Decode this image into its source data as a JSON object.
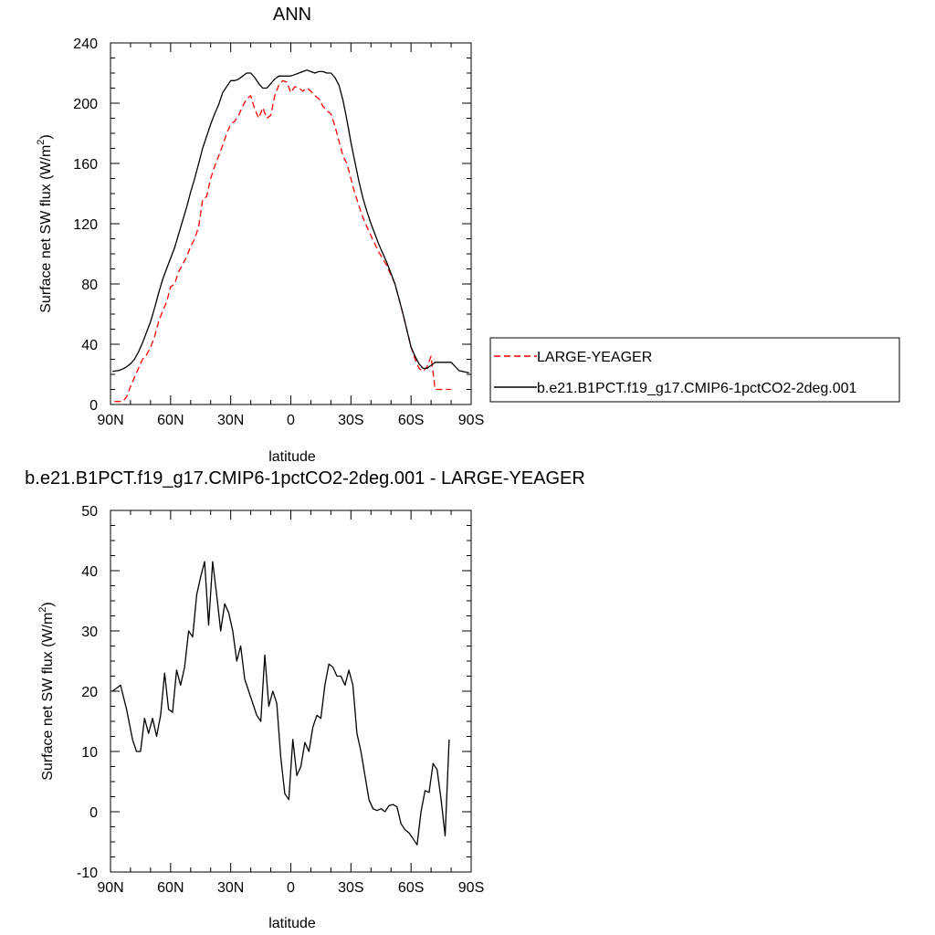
{
  "chart_data": [
    {
      "type": "line",
      "title": "ANN",
      "xlabel": "latitude",
      "ylabel": "Surface net SW flux",
      "ylabel_unit_prefix": "(W/m",
      "ylabel_unit_exp": "2",
      "ylabel_unit_suffix": ")",
      "xlim": [
        90,
        -90
      ],
      "ylim": [
        0,
        240
      ],
      "xticks": [
        90,
        60,
        30,
        0,
        -30,
        -60,
        -90
      ],
      "xtick_labels": [
        "90N",
        "60N",
        "30N",
        "0",
        "30S",
        "60S",
        "90S"
      ],
      "yticks": [
        0,
        40,
        80,
        120,
        160,
        200,
        240
      ],
      "ytick_labels": [
        "0",
        "40",
        "80",
        "120",
        "160",
        "200",
        "240"
      ],
      "legend_position": "right",
      "series": [
        {
          "name": "LARGE-YEAGER",
          "color": "#ff0000",
          "dash": "dashed",
          "x": [
            88,
            86,
            84,
            82,
            80,
            78,
            76,
            74,
            72,
            70,
            68,
            66,
            64,
            62,
            60,
            58,
            56,
            54,
            52,
            50,
            48,
            46,
            44,
            42,
            40,
            38,
            36,
            34,
            32,
            30,
            28,
            26,
            24,
            22,
            20,
            18,
            16,
            14,
            12,
            10,
            8,
            6,
            4,
            2,
            0,
            -2,
            -4,
            -6,
            -8,
            -10,
            -12,
            -14,
            -16,
            -18,
            -20,
            -22,
            -24,
            -26,
            -28,
            -30,
            -32,
            -34,
            -36,
            -38,
            -40,
            -44,
            -48,
            -52,
            -56,
            -60,
            -62,
            -64,
            -66,
            -68,
            -70,
            -72,
            -74,
            -76,
            -78,
            -80
          ],
          "y": [
            2,
            2,
            2,
            5,
            12,
            18,
            24,
            30,
            33,
            38,
            45,
            55,
            62,
            68,
            78,
            80,
            88,
            93,
            98,
            105,
            110,
            118,
            136,
            138,
            150,
            158,
            165,
            172,
            180,
            186,
            188,
            192,
            198,
            203,
            205,
            196,
            190,
            197,
            190,
            192,
            205,
            212,
            215,
            214,
            207,
            211,
            210,
            208,
            210,
            208,
            205,
            203,
            198,
            195,
            193,
            185,
            175,
            165,
            160,
            150,
            140,
            132,
            124,
            118,
            112,
            101,
            92,
            80,
            60,
            38,
            30,
            24,
            22,
            25,
            32,
            10,
            10,
            10,
            10,
            10
          ]
        },
        {
          "name": "b.e21.B1PCT.f19_g17.CMIP6-1pctCO2-2deg.001",
          "color": "#000000",
          "dash": "solid",
          "x": [
            89,
            86,
            84,
            82,
            80,
            78,
            76,
            74,
            72,
            70,
            68,
            66,
            64,
            62,
            60,
            58,
            56,
            54,
            52,
            50,
            48,
            46,
            44,
            42,
            40,
            38,
            36,
            34,
            32,
            30,
            28,
            26,
            24,
            22,
            20,
            18,
            16,
            14,
            12,
            10,
            8,
            6,
            4,
            2,
            0,
            -2,
            -4,
            -6,
            -8,
            -10,
            -12,
            -14,
            -16,
            -18,
            -20,
            -22,
            -24,
            -26,
            -28,
            -30,
            -32,
            -34,
            -36,
            -38,
            -40,
            -44,
            -48,
            -52,
            -56,
            -60,
            -62,
            -64,
            -66,
            -68,
            -70,
            -72,
            -74,
            -76,
            -78,
            -80,
            -84,
            -89
          ],
          "y": [
            22,
            22.5,
            23.5,
            25,
            27,
            30,
            35,
            41,
            48,
            55,
            64,
            74,
            83,
            90,
            97,
            104,
            113,
            122,
            131,
            141,
            150,
            160,
            170,
            178,
            186,
            193,
            199,
            207,
            211,
            215,
            215,
            216,
            218,
            220,
            220,
            217,
            213,
            210,
            210,
            213,
            216,
            218,
            218,
            218,
            218,
            219,
            220,
            221,
            222,
            221,
            220,
            221,
            221,
            220,
            220,
            217,
            212,
            202,
            189,
            174,
            161,
            148,
            137,
            128,
            120,
            106,
            94,
            80,
            60,
            38,
            32,
            27,
            24,
            24,
            26,
            28,
            28,
            28,
            28,
            28,
            22.5,
            21
          ]
        }
      ]
    },
    {
      "type": "line",
      "title": "b.e21.B1PCT.f19_g17.CMIP6-1pctCO2-2deg.001 - LARGE-YEAGER",
      "xlabel": "latitude",
      "ylabel": "Surface net SW flux",
      "ylabel_unit_prefix": "(W/m",
      "ylabel_unit_exp": "2",
      "ylabel_unit_suffix": ")",
      "xlim": [
        90,
        -90
      ],
      "ylim": [
        -10,
        50
      ],
      "xticks": [
        90,
        60,
        30,
        0,
        -30,
        -60,
        -90
      ],
      "xtick_labels": [
        "90N",
        "60N",
        "30N",
        "0",
        "30S",
        "60S",
        "90S"
      ],
      "yticks": [
        -10,
        0,
        10,
        20,
        30,
        40,
        50
      ],
      "ytick_labels": [
        "-10",
        "0",
        "10",
        "20",
        "30",
        "40",
        "50"
      ],
      "series": [
        {
          "color": "#000000",
          "dash": "solid",
          "x": [
            89,
            85,
            82,
            79,
            77,
            75,
            73,
            71,
            69,
            67,
            65,
            63,
            61,
            59,
            57,
            55,
            53,
            51,
            49,
            47,
            45,
            43,
            41,
            39,
            37,
            35,
            33,
            31,
            29,
            27,
            25,
            23,
            21,
            19,
            17,
            15,
            13,
            11,
            9,
            7,
            5,
            3,
            1,
            -1,
            -3,
            -5,
            -7,
            -9,
            -11,
            -13,
            -15,
            -17,
            -19,
            -21,
            -23,
            -25,
            -27,
            -29,
            -31,
            -33,
            -35,
            -37,
            -39,
            -41,
            -43,
            -45,
            -47,
            -49,
            -51,
            -53,
            -55,
            -57,
            -59,
            -61,
            -63,
            -65,
            -67,
            -69,
            -71,
            -73,
            -75,
            -77,
            -79
          ],
          "y": [
            20,
            21,
            17,
            12,
            10,
            10,
            15.5,
            13,
            15.5,
            12.5,
            16,
            23,
            17,
            16.5,
            23.5,
            21,
            24,
            30,
            29,
            36,
            39,
            41.5,
            31,
            41.5,
            36,
            30,
            34.5,
            33,
            30,
            25,
            27.5,
            22,
            20,
            18,
            16,
            15,
            26,
            17.5,
            20,
            18,
            9,
            3,
            2,
            12,
            6,
            7.5,
            11.5,
            10,
            14,
            16,
            15.5,
            21,
            24.5,
            24,
            22.5,
            22.5,
            21,
            23.5,
            21,
            13,
            10,
            6,
            2,
            0.5,
            0.2,
            0.5,
            0,
            1,
            1.2,
            0.8,
            -2,
            -3,
            -3.5,
            -4.5,
            -5.5,
            0,
            3.5,
            3.2,
            8,
            7,
            2,
            -4,
            12
          ]
        }
      ]
    }
  ]
}
